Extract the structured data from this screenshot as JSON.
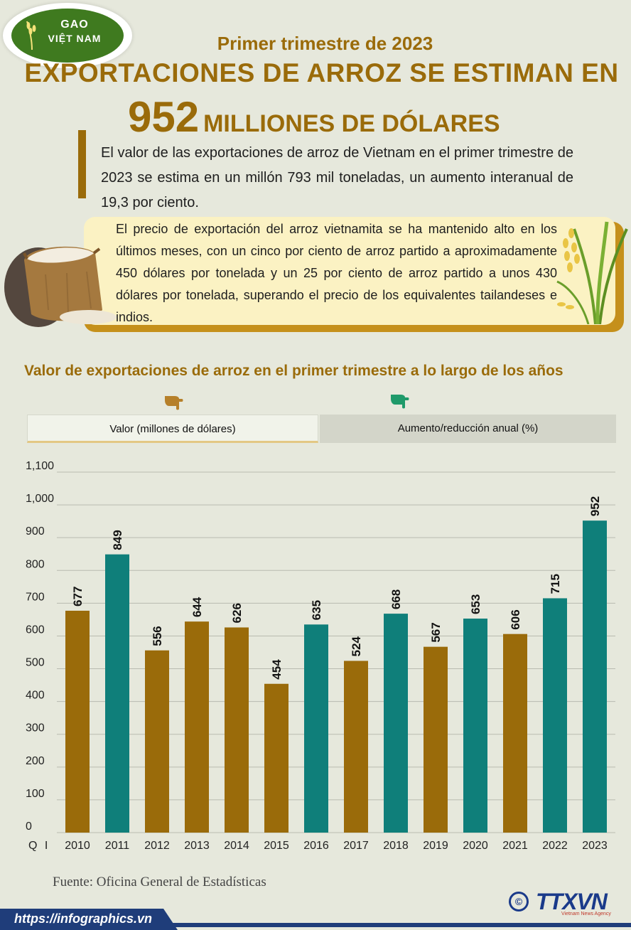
{
  "logo": {
    "line1": "GAO",
    "line2": "VIỆT NAM"
  },
  "header": {
    "subtitle": "Primer trimestre de 2023",
    "title_line1": "EXPORTACIONES DE ARROZ SE ESTIMAN EN",
    "title_big_number": "952",
    "title_rest": "MILLIONES DE DÓLARES"
  },
  "lead_text": "El valor de las exportaciones de arroz de Vietnam en el primer trimestre de 2023 se estima en un millón 793 mil toneladas, un aumento interanual de 19,3 por ciento.",
  "box_text": "El precio de exportación del arroz vietnamita se ha mantenido alto en los últimos meses, con un cinco por ciento de arroz partido a aproximadamente 450 dólares por tonelada y un 25 por ciento de arroz partido a unos 430 dólares por tonelada, superando el precio de los equivalentes tailandeses e indios.",
  "chart_heading": "Valor de exportaciones de arroz en el primer trimestre a lo largo de los años",
  "tabs": [
    {
      "label": "Valor (millones de dólares)",
      "active": true
    },
    {
      "label": "Aumento/reducción anual (%)",
      "active": false
    }
  ],
  "colors": {
    "gold": "#9a6b0a",
    "teal": "#0f7f7a",
    "navy": "#1f3d7a"
  },
  "chart_data": {
    "type": "bar",
    "title": "",
    "xlabel": "Q I",
    "ylabel": "",
    "categories": [
      "2010",
      "2011",
      "2012",
      "2013",
      "2014",
      "2015",
      "2016",
      "2017",
      "2018",
      "2019",
      "2020",
      "2021",
      "2022",
      "2023"
    ],
    "values": [
      677,
      849,
      556,
      644,
      626,
      454,
      635,
      524,
      668,
      567,
      653,
      606,
      715,
      952
    ],
    "bar_colors": [
      "#9a6b0a",
      "#0f7f7a",
      "#9a6b0a",
      "#9a6b0a",
      "#9a6b0a",
      "#9a6b0a",
      "#0f7f7a",
      "#9a6b0a",
      "#0f7f7a",
      "#9a6b0a",
      "#0f7f7a",
      "#9a6b0a",
      "#0f7f7a",
      "#0f7f7a"
    ],
    "ylim": [
      0,
      1100
    ],
    "yticks": [
      0,
      100,
      200,
      300,
      400,
      500,
      600,
      700,
      800,
      900,
      1000,
      1100
    ],
    "ytick_labels": [
      "0",
      "100",
      "200",
      "300",
      "400",
      "500",
      "600",
      "700",
      "800",
      "900",
      "1,000",
      "1,100"
    ],
    "grid": true,
    "data_labels": true
  },
  "source": "Fuente: Oficina General de Estadísticas",
  "footer": {
    "url": "https://infographics.vn",
    "brand": "TTXVN",
    "brand_sub": "Vietnam News Agency",
    "copyright_symbol": "©"
  }
}
